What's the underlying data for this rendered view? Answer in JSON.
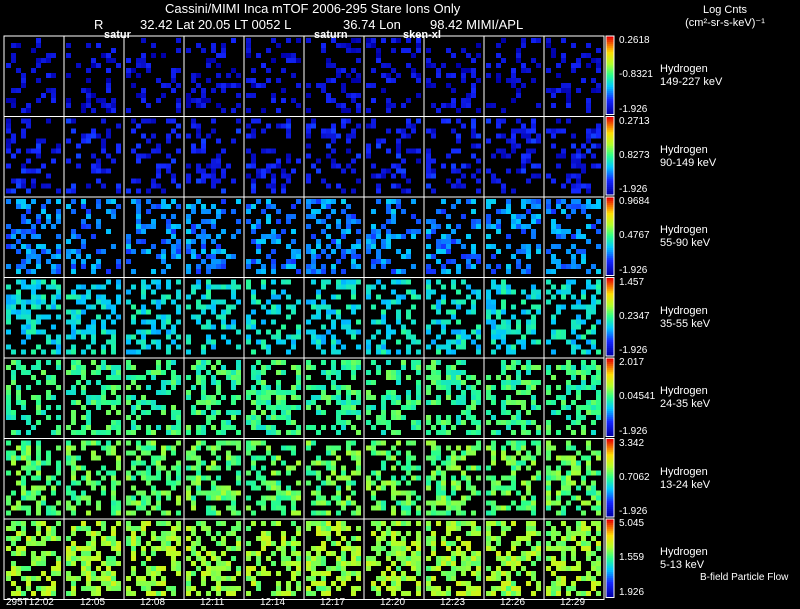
{
  "header": {
    "title": "Cassini/MIMI Inca mTOF  2006-295   Stare   Ions Only",
    "line2_r": "R",
    "line2_lat": "32.42 Lat 20.05 LT 0052 L",
    "line2_lon": "36.74 Lon",
    "line2_mimi": "98.42  MIMI/APL",
    "overlay1": "satur",
    "overlay2": "saturn",
    "overlay3": "sken-xl"
  },
  "colorbar_title": {
    "line1": "Log Cnts",
    "line2": "(cm²-sr-s-keV)⁻¹"
  },
  "footer_note": "B-field Particle Flow",
  "times": [
    "295T12:02",
    "12:05",
    "12:08",
    "12:11",
    "12:14",
    "12:17",
    "12:20",
    "12:23",
    "12:26",
    "12:29"
  ],
  "rows": [
    {
      "species": "Hydrogen",
      "energy": "149-227 keV",
      "cmax": "0.2618",
      "cmid": "-0.8321",
      "cmin": "-1.926",
      "level": 0.08
    },
    {
      "species": "Hydrogen",
      "energy": "90-149 keV",
      "cmax": "0.2713",
      "cmid": "0.8273",
      "cmin": "-1.926",
      "level": 0.12
    },
    {
      "species": "Hydrogen",
      "energy": "55-90 keV",
      "cmax": "0.9684",
      "cmid": "0.4767",
      "cmin": "-1.926",
      "level": 0.28
    },
    {
      "species": "Hydrogen",
      "energy": "35-55 keV",
      "cmax": "1.457",
      "cmid": "0.2347",
      "cmin": "-1.926",
      "level": 0.4
    },
    {
      "species": "Hydrogen",
      "energy": "24-35 keV",
      "cmax": "2.017",
      "cmid": "0.04541",
      "cmin": "-1.926",
      "level": 0.5
    },
    {
      "species": "Hydrogen",
      "energy": "13-24 keV",
      "cmax": "3.342",
      "cmid": "0.7062",
      "cmin": "-1.926",
      "level": 0.55
    },
    {
      "species": "Hydrogen",
      "energy": "5-13 keV",
      "cmax": "5.045",
      "cmid": "1.559",
      "cmin": "1.926",
      "level": 0.62
    }
  ]
}
